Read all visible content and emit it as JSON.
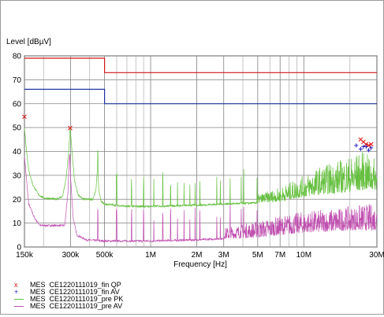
{
  "chart_data": {
    "type": "line",
    "ylabel": "Level [dBµV]",
    "xlabel": "Frequency [Hz]",
    "x_scale": "log",
    "xlim": [
      150000,
      30000000
    ],
    "ylim": [
      0,
      80
    ],
    "x_ticks": [
      {
        "value": 150000,
        "label": "150k"
      },
      {
        "value": 300000,
        "label": "300k"
      },
      {
        "value": 500000,
        "label": "500k"
      },
      {
        "value": 1000000,
        "label": "1M"
      },
      {
        "value": 2000000,
        "label": "2M"
      },
      {
        "value": 3000000,
        "label": "3M"
      },
      {
        "value": 5000000,
        "label": "5M"
      },
      {
        "value": 7000000,
        "label": "7M"
      },
      {
        "value": 10000000,
        "label": "10M"
      },
      {
        "value": 30000000,
        "label": "30M"
      }
    ],
    "x_minor_grid": [
      200000,
      400000,
      600000,
      700000,
      800000,
      900000,
      4000000,
      6000000,
      8000000,
      9000000,
      20000000
    ],
    "y_ticks": [
      0,
      10,
      20,
      30,
      40,
      50,
      60,
      70,
      80
    ],
    "grid": true,
    "limit_lines": [
      {
        "color": "#d01818",
        "points": [
          [
            150000,
            79
          ],
          [
            500000,
            79
          ],
          [
            500000,
            73
          ],
          [
            30000000,
            73
          ]
        ]
      },
      {
        "color": "#1830a0",
        "points": [
          [
            150000,
            66
          ],
          [
            500000,
            66
          ],
          [
            500000,
            60
          ],
          [
            30000000,
            60
          ]
        ]
      }
    ],
    "series": [
      {
        "name": "MES  CE1220111019_fin QP",
        "color": "#e01010",
        "marker": "x",
        "points": [
          [
            150000,
            54.5
          ],
          [
            298000,
            49.8
          ],
          [
            23500000,
            45
          ],
          [
            24500000,
            44
          ],
          [
            25500000,
            43
          ],
          [
            26500000,
            42.5
          ],
          [
            27500000,
            43
          ]
        ]
      },
      {
        "name": "MES  CE1220111019_fin AV",
        "color": "#2020c0",
        "marker": "+",
        "points": [
          [
            22000000,
            42.5
          ],
          [
            23500000,
            41
          ],
          [
            24500000,
            42
          ],
          [
            25500000,
            42
          ],
          [
            26500000,
            40.5
          ],
          [
            27500000,
            41.5
          ]
        ]
      },
      {
        "name": "MES  CE1220111019_pre PK",
        "color": "#66c040",
        "marker": "line",
        "profile": [
          [
            150000,
            50
          ],
          [
            155000,
            40
          ],
          [
            160000,
            32
          ],
          [
            170000,
            26
          ],
          [
            185000,
            22
          ],
          [
            200000,
            20.5
          ],
          [
            240000,
            20
          ],
          [
            265000,
            21
          ],
          [
            280000,
            28
          ],
          [
            292000,
            40
          ],
          [
            298000,
            50
          ],
          [
            305000,
            42
          ],
          [
            318000,
            28
          ],
          [
            335000,
            22
          ],
          [
            360000,
            20
          ],
          [
            420000,
            20
          ],
          [
            440000,
            24
          ],
          [
            450000,
            34
          ],
          [
            458000,
            24
          ],
          [
            475000,
            19
          ],
          [
            500000,
            18
          ],
          [
            700000,
            17
          ],
          [
            1000000,
            17
          ],
          [
            2000000,
            17.5
          ],
          [
            3000000,
            18
          ],
          [
            5000000,
            18.5
          ],
          [
            7000000,
            19
          ],
          [
            10000000,
            21
          ],
          [
            13000000,
            22
          ],
          [
            16000000,
            22.5
          ],
          [
            20000000,
            23
          ],
          [
            25000000,
            24
          ],
          [
            30000000,
            24
          ]
        ],
        "peak_envelope": [
          [
            5000000,
            22
          ],
          [
            7000000,
            25
          ],
          [
            10000000,
            30
          ],
          [
            13000000,
            34
          ],
          [
            16000000,
            36
          ],
          [
            20000000,
            38
          ],
          [
            24000000,
            40
          ],
          [
            28000000,
            38
          ],
          [
            30000000,
            36
          ]
        ]
      },
      {
        "name": "MES  CE1220111019_pre AV",
        "color": "#c050b0",
        "marker": "line",
        "profile": [
          [
            150000,
            38
          ],
          [
            160000,
            18
          ],
          [
            175000,
            12
          ],
          [
            190000,
            9
          ],
          [
            220000,
            9
          ],
          [
            275000,
            9
          ],
          [
            288000,
            22
          ],
          [
            296000,
            40
          ],
          [
            301000,
            28
          ],
          [
            312000,
            12
          ],
          [
            330000,
            5
          ],
          [
            380000,
            3
          ],
          [
            500000,
            2.5
          ],
          [
            1000000,
            2.5
          ],
          [
            2000000,
            3
          ],
          [
            3000000,
            3.5
          ],
          [
            5000000,
            4
          ],
          [
            7000000,
            5
          ],
          [
            10000000,
            6
          ],
          [
            15000000,
            6.5
          ],
          [
            20000000,
            7
          ],
          [
            30000000,
            7
          ]
        ],
        "peak_envelope": [
          [
            3000000,
            8
          ],
          [
            5000000,
            11
          ],
          [
            7000000,
            13
          ],
          [
            10000000,
            15
          ],
          [
            15000000,
            16
          ],
          [
            20000000,
            17
          ],
          [
            25000000,
            18
          ],
          [
            30000000,
            18
          ]
        ]
      }
    ]
  }
}
